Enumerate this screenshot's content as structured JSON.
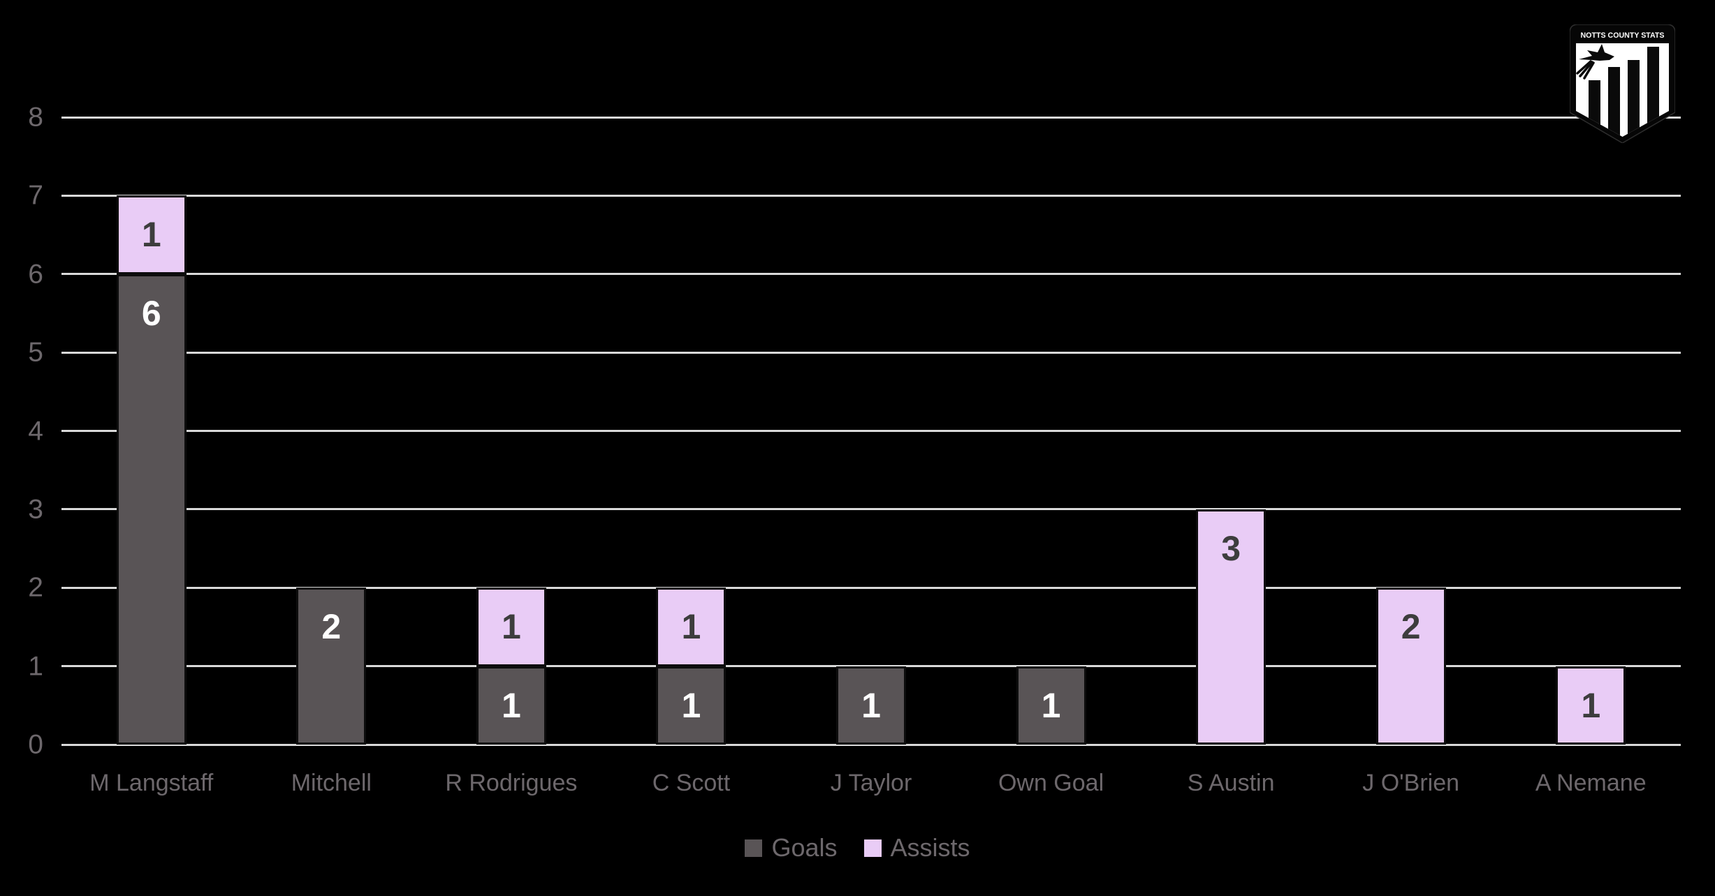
{
  "logo": {
    "title": "NOTTS COUNTY STATS"
  },
  "legend": {
    "items": [
      "Goals",
      "Assists"
    ]
  },
  "chart_data": {
    "type": "bar",
    "stacked": true,
    "title": "",
    "xlabel": "",
    "ylabel": "",
    "categories": [
      "M Langstaff",
      "Mitchell",
      "R Rodrigues",
      "C Scott",
      "J Taylor",
      "Own Goal",
      "S Austin",
      "J O'Brien",
      "A Nemane"
    ],
    "series": [
      {
        "name": "Goals",
        "color": "#595456",
        "label_color": "#ffffff",
        "values": [
          6,
          2,
          1,
          1,
          1,
          1,
          0,
          0,
          0
        ]
      },
      {
        "name": "Assists",
        "color": "#e9ccf6",
        "label_color": "#3d3d3d",
        "values": [
          1,
          0,
          1,
          1,
          0,
          0,
          3,
          2,
          1
        ]
      }
    ],
    "totals": [
      7,
      2,
      2,
      2,
      1,
      1,
      3,
      2,
      1
    ],
    "ylim": [
      0,
      8
    ],
    "yticks": [
      0,
      1,
      2,
      3,
      4,
      5,
      6,
      7,
      8
    ],
    "grid": true,
    "legend_position": "bottom-center",
    "colors": {
      "background": "#000000",
      "gridline": "#d9d9d9",
      "axis_label": "#6d686c",
      "legend_text": "#6d686c",
      "bar_border": "#0d0d0d"
    }
  }
}
